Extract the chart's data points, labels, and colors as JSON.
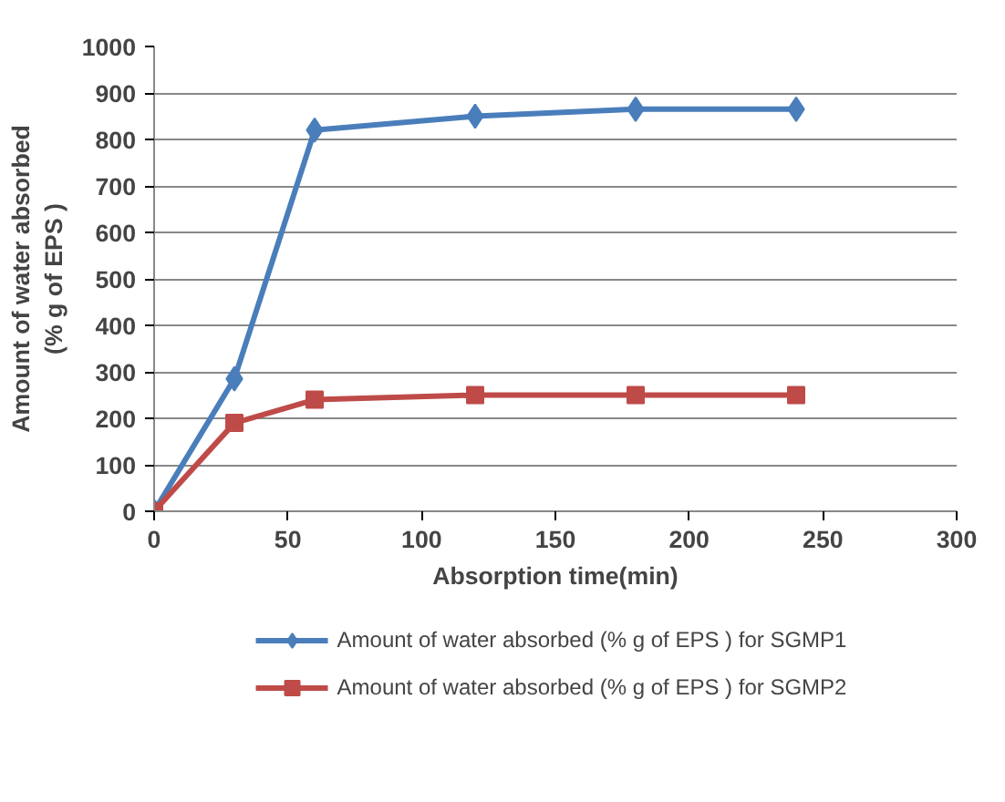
{
  "chart_data": {
    "type": "line",
    "xlabel": "Absorption time(min)",
    "ylabel": "Amount of water absorbed\n(% g of EPS )",
    "x": [
      0,
      30,
      60,
      120,
      180,
      240
    ],
    "series": [
      {
        "name": "Amount of water absorbed (% g of EPS ) for SGMP1",
        "color": "#4a7ebb",
        "marker": "diamond",
        "values": [
          0,
          285,
          820,
          850,
          865,
          865
        ]
      },
      {
        "name": "Amount of water absorbed (% g of EPS ) for SGMP2",
        "color": "#be4b48",
        "marker": "square",
        "values": [
          0,
          190,
          240,
          250,
          250,
          250
        ]
      }
    ],
    "xlim": [
      0,
      300
    ],
    "xticks": [
      0,
      50,
      100,
      150,
      200,
      250,
      300
    ],
    "ylim": [
      0,
      1000
    ],
    "yticks": [
      0,
      100,
      200,
      300,
      400,
      500,
      600,
      700,
      800,
      900,
      1000
    ],
    "grid": "y",
    "legend": "bottom",
    "line_style": "solid"
  }
}
